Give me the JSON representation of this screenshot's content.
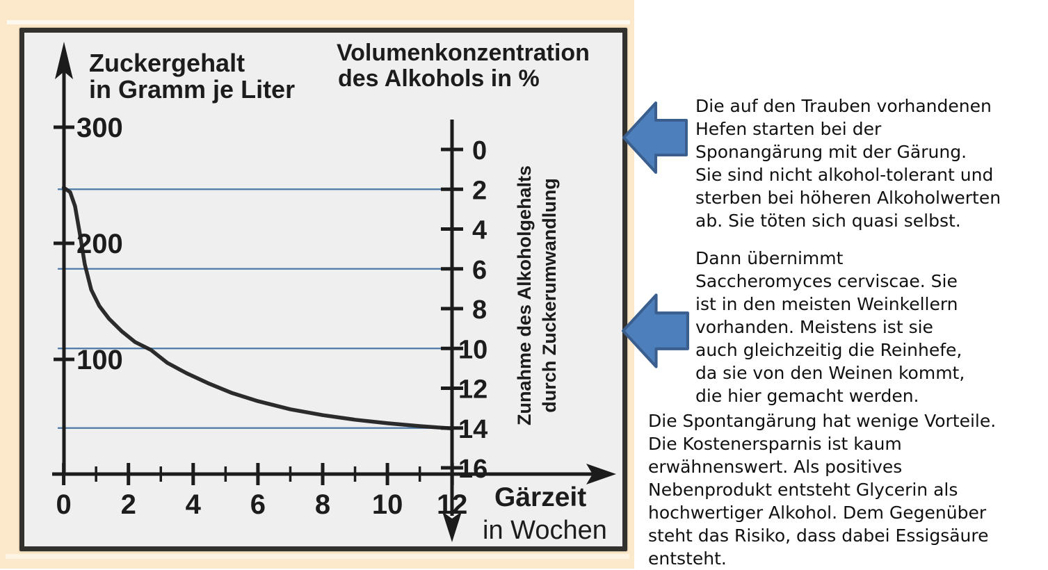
{
  "chart_data": {
    "type": "line",
    "x_axis": {
      "title_lines": [
        "Gärzeit",
        "in Wochen"
      ],
      "ticks": [
        0,
        2,
        4,
        6,
        8,
        10,
        12
      ],
      "minor_ticks": [
        1,
        3,
        5,
        7,
        9,
        11
      ],
      "range_weeks": [
        0,
        12
      ]
    },
    "left_y_axis": {
      "title_lines": [
        "Zuckergehalt",
        "in Gramm je Liter"
      ],
      "units": "g/L",
      "ticks": [
        300,
        200,
        100
      ]
    },
    "right_y_axis": {
      "title_lines": [
        "Volumenkonzentration",
        "des Alkohols in %"
      ],
      "side_label_lines": [
        "Zunahme des Alkoholgehalts",
        "durch Zuckerumwandlung"
      ],
      "ticks": [
        0,
        2,
        4,
        6,
        8,
        10,
        12,
        14,
        16
      ],
      "direction": "values increase downward"
    },
    "series": [
      {
        "name": "Zuckergehalt",
        "points_week_sugar": [
          [
            0,
            248
          ],
          [
            0.2,
            244
          ],
          [
            0.35,
            232
          ],
          [
            0.5,
            208
          ],
          [
            0.65,
            182
          ],
          [
            0.85,
            160
          ],
          [
            1.1,
            146
          ],
          [
            1.4,
            135
          ],
          [
            1.8,
            124
          ],
          [
            2.2,
            115
          ],
          [
            2.7,
            108
          ],
          [
            3.2,
            97
          ],
          [
            3.8,
            88
          ],
          [
            4.5,
            79
          ],
          [
            5.2,
            71
          ],
          [
            6,
            64
          ],
          [
            7,
            57
          ],
          [
            8,
            52
          ],
          [
            9,
            48
          ],
          [
            10,
            45
          ],
          [
            11,
            42.5
          ],
          [
            12,
            40.5
          ]
        ]
      }
    ],
    "reference_lines_alcohol_percent": [
      2,
      6,
      10,
      14
    ],
    "colors": {
      "curve": "#202020",
      "axis": "#1c1c1c",
      "reference_line": "#4d79a8",
      "paper": "#efeff0",
      "scan_background": "#fce8ca"
    }
  },
  "annotations": {
    "arrow_fill": "#4d7fbc",
    "arrow_stroke": "#3a5f8e",
    "block1": "Die auf den Trauben vorhandenen\nHefen starten bei der\nSponangärung mit der Gärung.\nSie sind nicht alkohol-tolerant und\nsterben bei höheren Alkoholwerten\nab. Sie töten sich quasi selbst.",
    "block2": "Dann übernimmt\nSaccheromyces cerviscae. Sie\nist in den meisten Weinkellern\nvorhanden. Meistens ist sie\nauch gleichzeitig die Reinhefe,\nda sie von den Weinen kommt,\ndie hier gemacht werden.",
    "block3": "Die Spontangärung hat wenige Vorteile.\nDie Kostenersparnis ist kaum\nerwähnenswert. Als positives\nNebenprodukt entsteht Glycerin als\nhochwertiger Alkohol. Dem Gegenüber\nsteht das Risiko, dass dabei Essigsäure\nentsteht."
  }
}
